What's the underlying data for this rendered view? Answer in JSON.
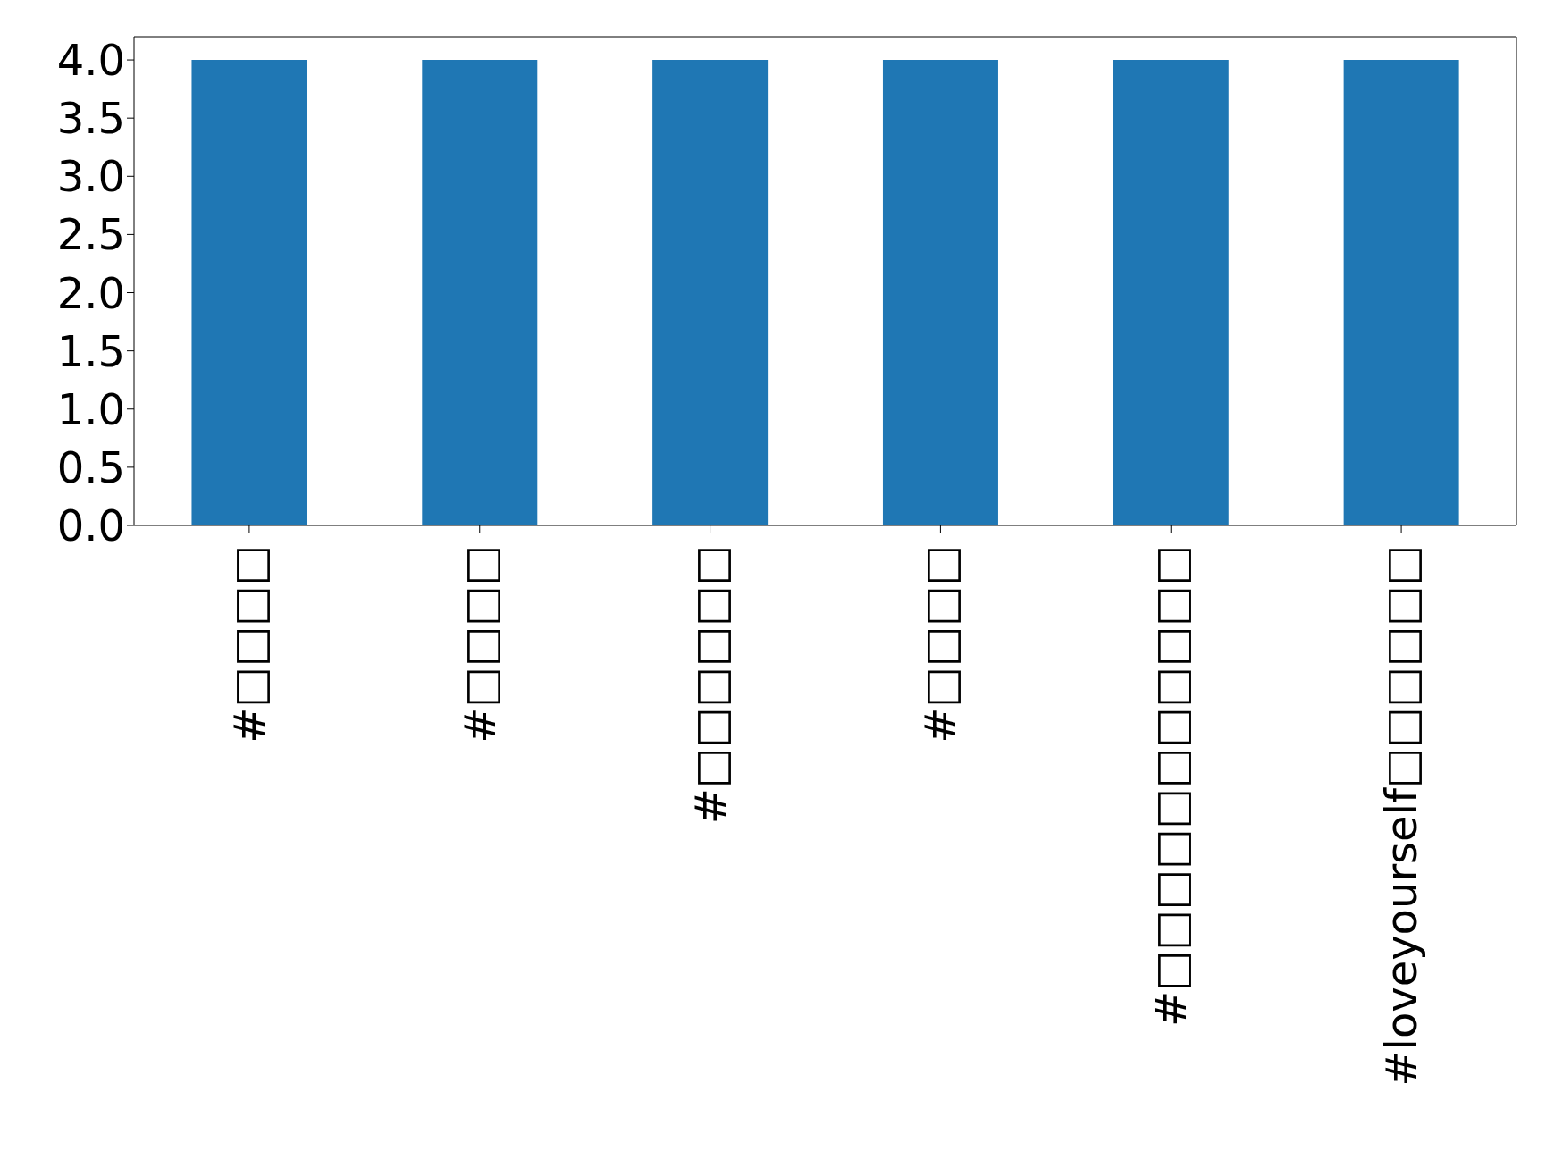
{
  "chart_data": {
    "type": "bar",
    "categories": [
      "#□□□□",
      "#□□□□",
      "#□□□□□□",
      "#□□□□",
      "#□□□□□□□□□□□",
      "#loveyourself□□□□□□"
    ],
    "values": [
      4,
      4,
      4,
      4,
      4,
      4
    ],
    "color": "#1f77b4",
    "ylim": [
      0,
      4.2
    ],
    "yticks": [
      {
        "value": 0,
        "label": "0.0"
      },
      {
        "value": 0.5,
        "label": "0.5"
      },
      {
        "value": 1,
        "label": "1.0"
      },
      {
        "value": 1.5,
        "label": "1.5"
      },
      {
        "value": 2,
        "label": "2.0"
      },
      {
        "value": 2.5,
        "label": "2.5"
      },
      {
        "value": 3,
        "label": "3.0"
      },
      {
        "value": 3.5,
        "label": "3.5"
      },
      {
        "value": 4,
        "label": "4.0"
      }
    ],
    "grid": false
  }
}
